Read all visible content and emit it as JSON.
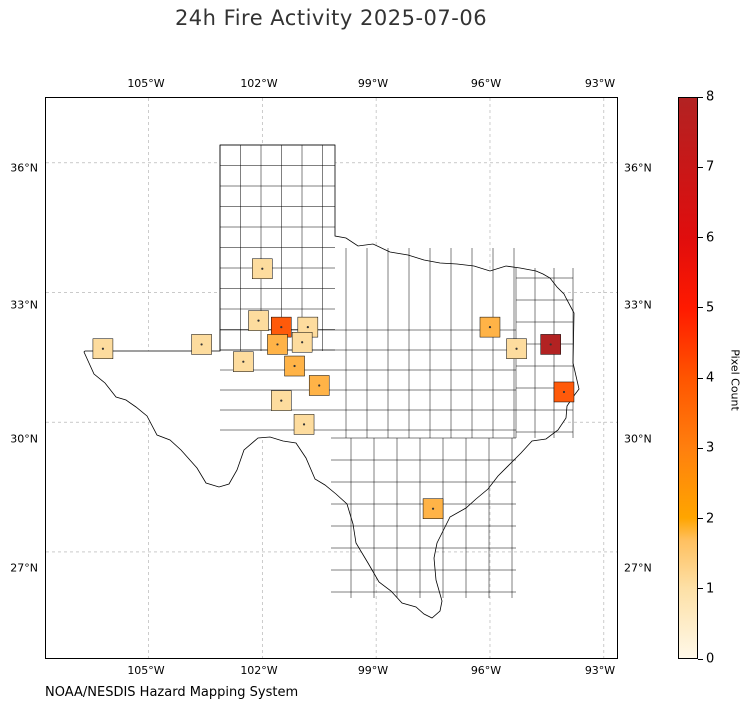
{
  "title": "24h Fire Activity 2025-07-06",
  "credit": "NOAA/NESDIS Hazard Mapping System",
  "longitude_ticks": [
    "105°W",
    "102°W",
    "99°W",
    "96°W",
    "93°W"
  ],
  "latitude_ticks": [
    "36°N",
    "33°N",
    "30°N",
    "27°N"
  ],
  "colorbar": {
    "label": "Pixel Count",
    "ticks": [
      "0",
      "1",
      "2",
      "3",
      "4",
      "5",
      "6",
      "7",
      "8"
    ],
    "min": 0,
    "max": 8
  },
  "map_extent": {
    "lon_min": -107.7,
    "lon_max": -92.6,
    "lat_min": 24.5,
    "lat_max": 37.5
  },
  "colors": {
    "outline": "#000000",
    "grid": "#aaaaaa",
    "max": "#b22222",
    "mid": "#ffa500",
    "low": "#fde0a6"
  },
  "fire_counties": [
    {
      "lon": -102.0,
      "lat": 33.55,
      "count": 1
    },
    {
      "lon": -102.1,
      "lat": 32.35,
      "count": 1
    },
    {
      "lon": -101.5,
      "lat": 32.2,
      "count": 4
    },
    {
      "lon": -100.8,
      "lat": 32.2,
      "count": 1
    },
    {
      "lon": -101.6,
      "lat": 31.8,
      "count": 2
    },
    {
      "lon": -100.95,
      "lat": 31.85,
      "count": 1
    },
    {
      "lon": -102.5,
      "lat": 31.4,
      "count": 1
    },
    {
      "lon": -101.15,
      "lat": 31.3,
      "count": 2
    },
    {
      "lon": -100.5,
      "lat": 30.85,
      "count": 2
    },
    {
      "lon": -101.5,
      "lat": 30.5,
      "count": 1
    },
    {
      "lon": -100.9,
      "lat": 29.95,
      "count": 1
    },
    {
      "lon": -103.6,
      "lat": 31.8,
      "count": 1
    },
    {
      "lon": -106.2,
      "lat": 31.7,
      "count": 1
    },
    {
      "lon": -96.0,
      "lat": 32.2,
      "count": 2
    },
    {
      "lon": -95.3,
      "lat": 31.7,
      "count": 1
    },
    {
      "lon": -94.4,
      "lat": 31.8,
      "count": 8
    },
    {
      "lon": -94.05,
      "lat": 30.7,
      "count": 4
    },
    {
      "lon": -97.5,
      "lat": 28.0,
      "count": 2
    }
  ]
}
